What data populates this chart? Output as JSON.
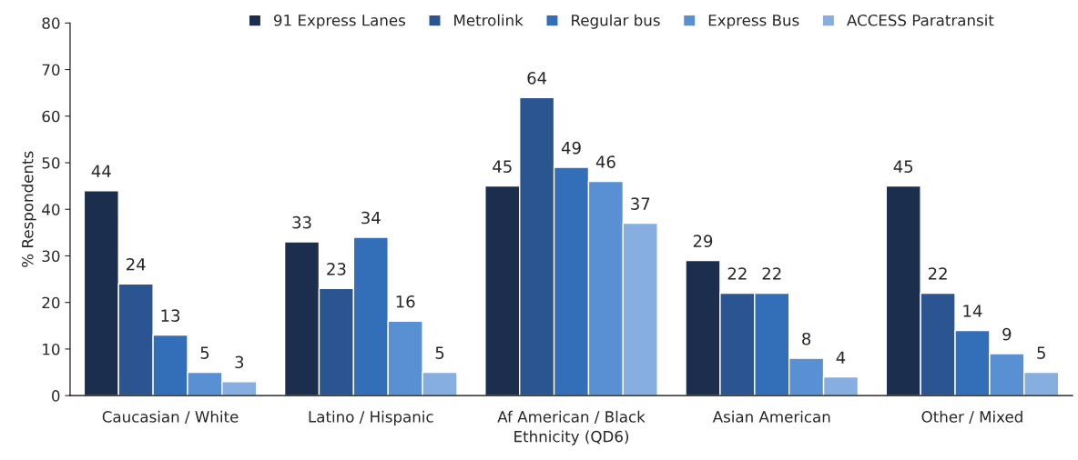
{
  "chart_data": {
    "type": "bar",
    "xlabel": "Ethnicity (QD6)",
    "ylabel": "% Respondents",
    "categories": [
      "Caucasian / White",
      "Latino / Hispanic",
      "Af American / Black",
      "Asian American",
      "Other / Mixed"
    ],
    "series": [
      {
        "name": "91 Express Lanes",
        "color": "#1b2e4e",
        "values": [
          44,
          33,
          45,
          29,
          45
        ]
      },
      {
        "name": "Metrolink",
        "color": "#2b5591",
        "values": [
          24,
          23,
          64,
          22,
          22
        ]
      },
      {
        "name": "Regular bus",
        "color": "#336fb9",
        "values": [
          13,
          34,
          49,
          22,
          14
        ]
      },
      {
        "name": "Express Bus",
        "color": "#5990d3",
        "values": [
          5,
          16,
          46,
          8,
          9
        ]
      },
      {
        "name": "ACCESS Paratransit",
        "color": "#86aee0",
        "values": [
          3,
          5,
          37,
          4,
          5
        ]
      }
    ],
    "ylim": [
      0,
      80
    ],
    "yticks": [
      0,
      10,
      20,
      30,
      40,
      50,
      60,
      70,
      80
    ],
    "grid": false,
    "legend": "top",
    "data_labels": true
  }
}
